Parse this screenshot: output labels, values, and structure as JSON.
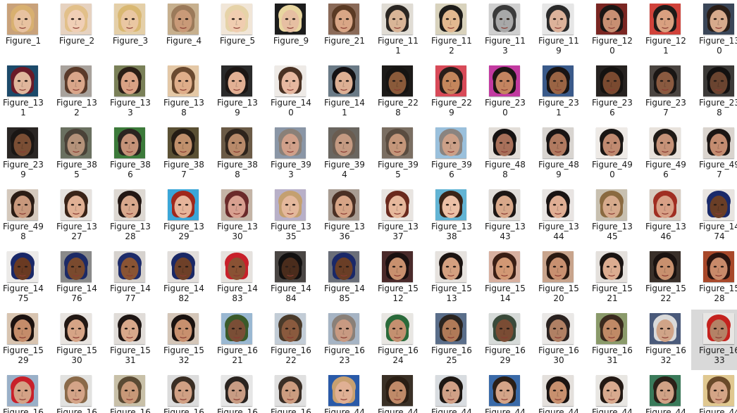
{
  "colors": {
    "background": "#ffffff",
    "selected_tile": "#d9d9d9",
    "label_text": "#1a1a1a"
  },
  "icon": "face-photo-thumbnail-icon",
  "selected_index": 83,
  "items": [
    {
      "l1": "Figure_1",
      "l2": "",
      "bg": "#c9a27a",
      "skin": "#e8c2a0",
      "hair": "#d8b070"
    },
    {
      "l1": "Figure_2",
      "l2": "",
      "bg": "#e6d2c0",
      "skin": "#f0cfb6",
      "hair": "#e2c08a"
    },
    {
      "l1": "Figure_3",
      "l2": "",
      "bg": "#e4cfa8",
      "skin": "#eac7a2",
      "hair": "#d9b872"
    },
    {
      "l1": "Figure_4",
      "l2": "",
      "bg": "#c7b08e",
      "skin": "#c99a78",
      "hair": "#9b7a5a"
    },
    {
      "l1": "Figure_5",
      "l2": "",
      "bg": "#f1e6d8",
      "skin": "#f0cdb0",
      "hair": "#e6d3a8"
    },
    {
      "l1": "Figure_9",
      "l2": "",
      "bg": "#1c1c1c",
      "skin": "#e6bfa2",
      "hair": "#e8d6a0"
    },
    {
      "l1": "Figure_21",
      "l2": "",
      "bg": "#8a6a58",
      "skin": "#d9a686",
      "hair": "#5a3a24"
    },
    {
      "l1": "Figure_11",
      "l2": "1",
      "bg": "#e0dcd4",
      "skin": "#d9b597",
      "hair": "#2a2622"
    },
    {
      "l1": "Figure_11",
      "l2": "2",
      "bg": "#d8d2bc",
      "skin": "#e3b990",
      "hair": "#1e1c1a"
    },
    {
      "l1": "Figure_11",
      "l2": "3",
      "bg": "#cfcfcf",
      "skin": "#a8a8a8",
      "hair": "#3a3a3a"
    },
    {
      "l1": "Figure_11",
      "l2": "9",
      "bg": "#e6e6e6",
      "skin": "#dcb29a",
      "hair": "#2a2a2a"
    },
    {
      "l1": "Figure_12",
      "l2": "0",
      "bg": "#7a2622",
      "skin": "#c88f72",
      "hair": "#1a1614"
    },
    {
      "l1": "Figure_12",
      "l2": "1",
      "bg": "#d0423a",
      "skin": "#d9a080",
      "hair": "#1e1a18"
    },
    {
      "l1": "Figure_13",
      "l2": "0",
      "bg": "#3a4658",
      "skin": "#d7aa8c",
      "hair": "#2a1e18"
    },
    {
      "l1": "Figure_13",
      "l2": "1",
      "bg": "#1c4a6a",
      "skin": "#e0b69c",
      "hair": "#6a1a28"
    },
    {
      "l1": "Figure_13",
      "l2": "2",
      "bg": "#a8a29c",
      "skin": "#d9a68a",
      "hair": "#5a3a2a"
    },
    {
      "l1": "Figure_13",
      "l2": "3",
      "bg": "#7a8058",
      "skin": "#d9a284",
      "hair": "#2a1e16"
    },
    {
      "l1": "Figure_13",
      "l2": "8",
      "bg": "#e4c8a6",
      "skin": "#dfae8a",
      "hair": "#6a4a30"
    },
    {
      "l1": "Figure_13",
      "l2": "9",
      "bg": "#2a2a2a",
      "skin": "#e2b094",
      "hair": "#1c1614"
    },
    {
      "l1": "Figure_14",
      "l2": "0",
      "bg": "#eeeae6",
      "skin": "#e6b8a0",
      "hair": "#4a3224"
    },
    {
      "l1": "Figure_14",
      "l2": "1",
      "bg": "#6a7a86",
      "skin": "#ddb094",
      "hair": "#141214"
    },
    {
      "l1": "Figure_22",
      "l2": "8",
      "bg": "#1c1a18",
      "skin": "#8a5a3a",
      "hair": "#161412"
    },
    {
      "l1": "Figure_22",
      "l2": "9",
      "bg": "#d84a58",
      "skin": "#c4865c",
      "hair": "#2a1e1a"
    },
    {
      "l1": "Figure_23",
      "l2": "0",
      "bg": "#c23aa0",
      "skin": "#c48460",
      "hair": "#1c1614"
    },
    {
      "l1": "Figure_23",
      "l2": "1",
      "bg": "#3a5a8a",
      "skin": "#9a6444",
      "hair": "#181414"
    },
    {
      "l1": "Figure_23",
      "l2": "6",
      "bg": "#262220",
      "skin": "#7a4a30",
      "hair": "#141210"
    },
    {
      "l1": "Figure_23",
      "l2": "7",
      "bg": "#4a4440",
      "skin": "#8a5a40",
      "hair": "#1a1614"
    },
    {
      "l1": "Figure_23",
      "l2": "8",
      "bg": "#3c3a38",
      "skin": "#6a4430",
      "hair": "#121010"
    },
    {
      "l1": "Figure_23",
      "l2": "9",
      "bg": "#2a2624",
      "skin": "#7a4e34",
      "hair": "#1a1614"
    },
    {
      "l1": "Figure_38",
      "l2": "5",
      "bg": "#6a7060",
      "skin": "#b4927a",
      "hair": "#4a4238"
    },
    {
      "l1": "Figure_38",
      "l2": "6",
      "bg": "#3c7a3a",
      "skin": "#c49278",
      "hair": "#2a2420"
    },
    {
      "l1": "Figure_38",
      "l2": "7",
      "bg": "#5a5034",
      "skin": "#c0906c",
      "hair": "#241c14"
    },
    {
      "l1": "Figure_38",
      "l2": "8",
      "bg": "#6a5a46",
      "skin": "#b88a6a",
      "hair": "#2e241c"
    },
    {
      "l1": "Figure_39",
      "l2": "3",
      "bg": "#8a96a6",
      "skin": "#d0a08a",
      "hair": "#8a8078"
    },
    {
      "l1": "Figure_39",
      "l2": "4",
      "bg": "#6a6660",
      "skin": "#c49a82",
      "hair": "#6a5c50"
    },
    {
      "l1": "Figure_39",
      "l2": "5",
      "bg": "#7a6e62",
      "skin": "#c4967a",
      "hair": "#5a4c40"
    },
    {
      "l1": "Figure_39",
      "l2": "6",
      "bg": "#9ac0dc",
      "skin": "#cca088",
      "hair": "#8a8480"
    },
    {
      "l1": "Figure_48",
      "l2": "8",
      "bg": "#e2ddd8",
      "skin": "#a8705a",
      "hair": "#161212"
    },
    {
      "l1": "Figure_48",
      "l2": "9",
      "bg": "#d8d4d0",
      "skin": "#b07a60",
      "hair": "#181414"
    },
    {
      "l1": "Figure_49",
      "l2": "0",
      "bg": "#eeeae6",
      "skin": "#c08a70",
      "hair": "#1a1614"
    },
    {
      "l1": "Figure_49",
      "l2": "6",
      "bg": "#e8e2dc",
      "skin": "#c69278",
      "hair": "#201a16"
    },
    {
      "l1": "Figure_49",
      "l2": "7",
      "bg": "#dad4ce",
      "skin": "#c48c70",
      "hair": "#1c1614"
    },
    {
      "l1": "Figure_49",
      "l2": "8",
      "bg": "#d4c8bc",
      "skin": "#c8987c",
      "hair": "#2a1c14"
    },
    {
      "l1": "Figure_13",
      "l2": "27",
      "bg": "#e6e2de",
      "skin": "#e0b094",
      "hair": "#3a2418"
    },
    {
      "l1": "Figure_13",
      "l2": "28",
      "bg": "#ddd8d2",
      "skin": "#d8a88c",
      "hair": "#241814"
    },
    {
      "l1": "Figure_13",
      "l2": "29",
      "bg": "#3aa6d8",
      "skin": "#e6b49a",
      "hair": "#a0281c"
    },
    {
      "l1": "Figure_13",
      "l2": "30",
      "bg": "#c4b4a6",
      "skin": "#d8a090",
      "hair": "#6a2a2a"
    },
    {
      "l1": "Figure_13",
      "l2": "35",
      "bg": "#b8b0c8",
      "skin": "#e4b89c",
      "hair": "#c4a070"
    },
    {
      "l1": "Figure_13",
      "l2": "36",
      "bg": "#a89c92",
      "skin": "#d6a486",
      "hair": "#4a3024"
    },
    {
      "l1": "Figure_13",
      "l2": "37",
      "bg": "#e8e4e0",
      "skin": "#e6b89c",
      "hair": "#6a2a1e"
    },
    {
      "l1": "Figure_13",
      "l2": "38",
      "bg": "#62b4d4",
      "skin": "#ecc0a6",
      "hair": "#3a2418"
    },
    {
      "l1": "Figure_13",
      "l2": "43",
      "bg": "#e0dcd8",
      "skin": "#d8a88a",
      "hair": "#1c1614"
    },
    {
      "l1": "Figure_13",
      "l2": "44",
      "bg": "#e8e4e2",
      "skin": "#e0ae94",
      "hair": "#1a1414"
    },
    {
      "l1": "Figure_13",
      "l2": "45",
      "bg": "#c8c0b0",
      "skin": "#d6aa8c",
      "hair": "#8a6a40"
    },
    {
      "l1": "Figure_13",
      "l2": "46",
      "bg": "#d8ccc0",
      "skin": "#d8a086",
      "hair": "#a02e22"
    },
    {
      "l1": "Figure_14",
      "l2": "74",
      "bg": "#e8e4e0",
      "skin": "#6a3e26",
      "hair": "#1a2a6a"
    },
    {
      "l1": "Figure_14",
      "l2": "75",
      "bg": "#eceae8",
      "skin": "#6a3a22",
      "hair": "#1a2868"
    },
    {
      "l1": "Figure_14",
      "l2": "76",
      "bg": "#8a8a8a",
      "skin": "#7a4a2e",
      "hair": "#1c2a66"
    },
    {
      "l1": "Figure_14",
      "l2": "77",
      "bg": "#d6d2ce",
      "skin": "#8a5434",
      "hair": "#1e2c6a"
    },
    {
      "l1": "Figure_14",
      "l2": "82",
      "bg": "#e2dedb",
      "skin": "#6e4028",
      "hair": "#1a2866"
    },
    {
      "l1": "Figure_14",
      "l2": "83",
      "bg": "#e6e2de",
      "skin": "#8a5234",
      "hair": "#c8202a"
    },
    {
      "l1": "Figure_14",
      "l2": "84",
      "bg": "#4a4644",
      "skin": "#4a2c1c",
      "hair": "#121010"
    },
    {
      "l1": "Figure_14",
      "l2": "85",
      "bg": "#6a6e78",
      "skin": "#6a3e26",
      "hair": "#1a2868"
    },
    {
      "l1": "Figure_15",
      "l2": "12",
      "bg": "#4a2a2a",
      "skin": "#c8906e",
      "hair": "#1a1010"
    },
    {
      "l1": "Figure_15",
      "l2": "13",
      "bg": "#e6e2de",
      "skin": "#d4a080",
      "hair": "#1c1412"
    },
    {
      "l1": "Figure_15",
      "l2": "14",
      "bg": "#d8b0a0",
      "skin": "#d29874",
      "hair": "#3a1e14"
    },
    {
      "l1": "Figure_15",
      "l2": "20",
      "bg": "#c8a48c",
      "skin": "#c89070",
      "hair": "#2a1a12"
    },
    {
      "l1": "Figure_15",
      "l2": "21",
      "bg": "#e4e0dc",
      "skin": "#dcac90",
      "hair": "#1a1412"
    },
    {
      "l1": "Figure_15",
      "l2": "22",
      "bg": "#3a302a",
      "skin": "#c8906e",
      "hair": "#1a1210"
    },
    {
      "l1": "Figure_15",
      "l2": "28",
      "bg": "#a8482a",
      "skin": "#c88a6a",
      "hair": "#2a1410"
    },
    {
      "l1": "Figure_15",
      "l2": "29",
      "bg": "#d8c4b0",
      "skin": "#c48c6a",
      "hair": "#1c1210"
    },
    {
      "l1": "Figure_15",
      "l2": "30",
      "bg": "#e8e4e0",
      "skin": "#d6a486",
      "hair": "#221814"
    },
    {
      "l1": "Figure_15",
      "l2": "31",
      "bg": "#e0dcd8",
      "skin": "#d8a88a",
      "hair": "#1e1614"
    },
    {
      "l1": "Figure_15",
      "l2": "32",
      "bg": "#d4c6b8",
      "skin": "#c8906e",
      "hair": "#1a1210"
    },
    {
      "l1": "Figure_16",
      "l2": "21",
      "bg": "#9ab8d2",
      "skin": "#7a4e36",
      "hair": "#3a5a2a"
    },
    {
      "l1": "Figure_16",
      "l2": "22",
      "bg": "#c2ccd6",
      "skin": "#8a5a3e",
      "hair": "#4a3a2a"
    },
    {
      "l1": "Figure_16",
      "l2": "23",
      "bg": "#a6b4c4",
      "skin": "#c89a82",
      "hair": "#8a8078"
    },
    {
      "l1": "Figure_16",
      "l2": "24",
      "bg": "#e8e6e2",
      "skin": "#c49070",
      "hair": "#2a6a3a"
    },
    {
      "l1": "Figure_16",
      "l2": "25",
      "bg": "#5a6e8a",
      "skin": "#b07a58",
      "hair": "#2a2420"
    },
    {
      "l1": "Figure_16",
      "l2": "29",
      "bg": "#d6dad8",
      "skin": "#7a4c34",
      "hair": "#3a4a3a"
    },
    {
      "l1": "Figure_16",
      "l2": "30",
      "bg": "#eae8e6",
      "skin": "#b08064",
      "hair": "#2a2220"
    },
    {
      "l1": "Figure_16",
      "l2": "31",
      "bg": "#8a9a6a",
      "skin": "#c08a66",
      "hair": "#3a2a1e"
    },
    {
      "l1": "Figure_16",
      "l2": "32",
      "bg": "#4a5a7a",
      "skin": "#d0a488",
      "hair": "#dadada"
    },
    {
      "l1": "Figure_16",
      "l2": "33",
      "bg": "#e8e6e4",
      "skin": "#b48266",
      "hair": "#c4221e"
    },
    {
      "l1": "Figure_16",
      "l2": "",
      "bg": "#9ab0c8",
      "skin": "#d4a286",
      "hair": "#c8202a"
    },
    {
      "l1": "Figure_16",
      "l2": "",
      "bg": "#e2e2e0",
      "skin": "#d4a488",
      "hair": "#8a6a4a"
    },
    {
      "l1": "Figure_16",
      "l2": "",
      "bg": "#c8c0a8",
      "skin": "#c89878",
      "hair": "#5a4a34"
    },
    {
      "l1": "Figure_16",
      "l2": "",
      "bg": "#dcdcdc",
      "skin": "#d0a084",
      "hair": "#3a2e24"
    },
    {
      "l1": "Figure_16",
      "l2": "",
      "bg": "#e6e6e6",
      "skin": "#c89c84",
      "hair": "#2a2420"
    },
    {
      "l1": "Figure_16",
      "l2": "",
      "bg": "#e0e0e0",
      "skin": "#cc9c80",
      "hair": "#3a2e26"
    },
    {
      "l1": "Figure_44",
      "l2": "",
      "bg": "#2a5aa8",
      "skin": "#e0b094",
      "hair": "#c8a070"
    },
    {
      "l1": "Figure_44",
      "l2": "",
      "bg": "#3a3026",
      "skin": "#c08a68",
      "hair": "#2a1e14"
    },
    {
      "l1": "Figure_44",
      "l2": "",
      "bg": "#d8dce0",
      "skin": "#d0a086",
      "hair": "#1e1814"
    },
    {
      "l1": "Figure_44",
      "l2": "",
      "bg": "#3a6aa8",
      "skin": "#d4a488",
      "hair": "#2a1e16"
    },
    {
      "l1": "Figure_44",
      "l2": "",
      "bg": "#e4e0dc",
      "skin": "#c8906e",
      "hair": "#1a1412"
    },
    {
      "l1": "Figure_44",
      "l2": "",
      "bg": "#e8e6e2",
      "skin": "#d8aa8e",
      "hair": "#241a14"
    },
    {
      "l1": "Figure_44",
      "l2": "",
      "bg": "#3a7a5a",
      "skin": "#d0a286",
      "hair": "#2a2018"
    },
    {
      "l1": "Figure_44",
      "l2": "",
      "bg": "#e0c890",
      "skin": "#d4a486",
      "hair": "#6a4a2a"
    }
  ]
}
